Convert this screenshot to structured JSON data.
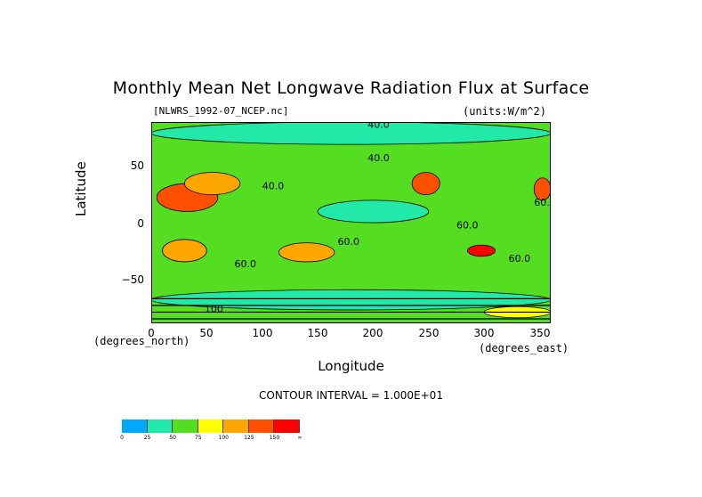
{
  "chart_data": {
    "type": "heatmap",
    "title": "Monthly Mean Net Longwave Radiation Flux at Surface",
    "subtitle_left": "[NLWRS_1992-07_NCEP.nc]",
    "subtitle_right": "(units:W/m^2)",
    "xlabel": "Longitude",
    "ylabel": "Latitude",
    "x_unit_label": "(degrees_east)",
    "y_unit_label": "(degrees_north)",
    "x_ticks": [
      "0",
      "50",
      "100",
      "150",
      "200",
      "250",
      "300",
      "350"
    ],
    "y_ticks": [
      "50",
      "0",
      "−50"
    ],
    "xlim": [
      0,
      360
    ],
    "ylim": [
      -90,
      90
    ],
    "contour_interval_text": "CONTOUR INTERVAL = 1.000E+01",
    "contour_labels": [
      "40.0",
      "40.0",
      "40.0",
      "60.0",
      "60.0",
      "60.0",
      "60.0",
      "60.0",
      "100"
    ],
    "colorbar": {
      "levels": [
        "0",
        "25",
        "50",
        "75",
        "100",
        "125",
        "150",
        "∞"
      ],
      "colors": [
        "#00a8ff",
        "#22e8a8",
        "#55dd22",
        "#ffff00",
        "#ffa600",
        "#ff5000",
        "#ff0000"
      ]
    },
    "regions": [
      {
        "lon": [
          0,
          360
        ],
        "lat": [
          -90,
          90
        ],
        "level": 2
      },
      {
        "lon": [
          0,
          360
        ],
        "lat": [
          70,
          90
        ],
        "level": 1
      },
      {
        "lon": [
          0,
          360
        ],
        "lat": [
          -78,
          -60
        ],
        "level": 1
      },
      {
        "lon": [
          5,
          60
        ],
        "lat": [
          10,
          35
        ],
        "level": 5
      },
      {
        "lon": [
          30,
          80
        ],
        "lat": [
          25,
          45
        ],
        "level": 4
      },
      {
        "lon": [
          10,
          50
        ],
        "lat": [
          -35,
          -15
        ],
        "level": 4
      },
      {
        "lon": [
          115,
          165
        ],
        "lat": [
          -35,
          -18
        ],
        "level": 4
      },
      {
        "lon": [
          235,
          260
        ],
        "lat": [
          25,
          45
        ],
        "level": 5
      },
      {
        "lon": [
          285,
          310
        ],
        "lat": [
          -30,
          -20
        ],
        "level": 6
      },
      {
        "lon": [
          345,
          360
        ],
        "lat": [
          20,
          40
        ],
        "level": 5
      },
      {
        "lon": [
          300,
          360
        ],
        "lat": [
          -85,
          -75
        ],
        "level": 3
      },
      {
        "lon": [
          150,
          250
        ],
        "lat": [
          0,
          20
        ],
        "level": 1
      }
    ]
  }
}
